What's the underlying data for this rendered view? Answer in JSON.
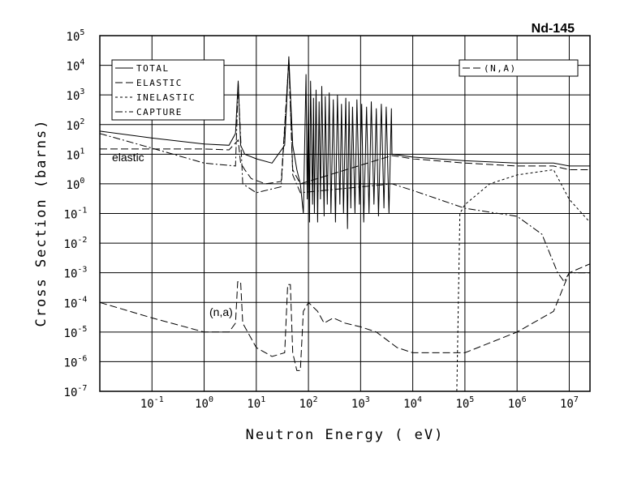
{
  "chart_data": {
    "type": "line",
    "title": "Nd-145",
    "xlabel": "Neutron Energy ( eV)",
    "ylabel": "Cross Section (barns)",
    "annotations": [
      "elastic",
      "(n,a)"
    ],
    "xscale": "log",
    "yscale": "log",
    "grid": true,
    "xlim": [
      0.01,
      25000000
    ],
    "ylim": [
      1e-07,
      100000
    ],
    "xticks": [
      {
        "value": 0.1,
        "label": "10",
        "sup": "-1"
      },
      {
        "value": 1,
        "label": "10",
        "sup": "0"
      },
      {
        "value": 10,
        "label": "10",
        "sup": "1"
      },
      {
        "value": 100,
        "label": "10",
        "sup": "2"
      },
      {
        "value": 1000,
        "label": "10",
        "sup": "3"
      },
      {
        "value": 10000,
        "label": "10",
        "sup": "4"
      },
      {
        "value": 100000,
        "label": "10",
        "sup": "5"
      },
      {
        "value": 1000000,
        "label": "10",
        "sup": "6"
      },
      {
        "value": 10000000,
        "label": "10",
        "sup": "7"
      }
    ],
    "yticks": [
      {
        "value": 1e-07,
        "label": "10",
        "sup": "-7"
      },
      {
        "value": 1e-06,
        "label": "10",
        "sup": "-6"
      },
      {
        "value": 1e-05,
        "label": "10",
        "sup": "-5"
      },
      {
        "value": 0.0001,
        "label": "10",
        "sup": "-4"
      },
      {
        "value": 0.001,
        "label": "10",
        "sup": "-3"
      },
      {
        "value": 0.01,
        "label": "10",
        "sup": "-2"
      },
      {
        "value": 0.1,
        "label": "10",
        "sup": "-1"
      },
      {
        "value": 1,
        "label": "10",
        "sup": "0"
      },
      {
        "value": 10,
        "label": "10",
        "sup": "1"
      },
      {
        "value": 100,
        "label": "10",
        "sup": "2"
      },
      {
        "value": 1000,
        "label": "10",
        "sup": "3"
      },
      {
        "value": 10000,
        "label": "10",
        "sup": "4"
      },
      {
        "value": 100000,
        "label": "10",
        "sup": "5"
      }
    ],
    "series": [
      {
        "name": "TOTAL",
        "color": "#000000",
        "dash": "solid",
        "legend": "upper left",
        "x": [
          0.01,
          0.1,
          1,
          3,
          4,
          4.5,
          5,
          6,
          10,
          20,
          35,
          42,
          50,
          60,
          70,
          80,
          90,
          95,
          100,
          105,
          110,
          120,
          125,
          130,
          140,
          150,
          160,
          170,
          180,
          200,
          210,
          230,
          250,
          270,
          300,
          330,
          360,
          400,
          430,
          470,
          520,
          560,
          600,
          650,
          700,
          780,
          850,
          950,
          1050,
          1150,
          1300,
          1450,
          1600,
          1800,
          2000,
          2200,
          2500,
          2800,
          3100,
          3500,
          3900,
          4000,
          10000,
          100000,
          1000000,
          5000000,
          10000000,
          25000000
        ],
        "values": [
          60,
          35,
          22,
          20,
          50,
          3000,
          20,
          10,
          7,
          5,
          20,
          20000,
          20,
          3,
          1,
          0.1,
          5000,
          0.3,
          1000,
          0.05,
          3000,
          0.2,
          800,
          0.1,
          1500,
          0.05,
          600,
          0.3,
          2000,
          0.08,
          900,
          0.2,
          1200,
          0.1,
          700,
          0.05,
          1000,
          0.2,
          500,
          0.1,
          800,
          0.03,
          600,
          0.15,
          400,
          0.1,
          700,
          0.2,
          500,
          0.05,
          400,
          0.1,
          600,
          0.2,
          350,
          0.08,
          500,
          0.15,
          400,
          0.1,
          350,
          10,
          8,
          6,
          5,
          5,
          4,
          4
        ]
      },
      {
        "name": "ELASTIC",
        "color": "#000000",
        "dash": "dashed",
        "legend": "upper left",
        "x": [
          0.01,
          1,
          3,
          4.5,
          5,
          6,
          8,
          15,
          30,
          42,
          50,
          70,
          4000,
          10000,
          100000,
          1000000,
          5000000,
          10000000,
          25000000
        ],
        "values": [
          15,
          15,
          14,
          30,
          5,
          3,
          1.5,
          1,
          1.2,
          15000,
          3,
          1,
          9,
          7,
          5,
          4,
          4,
          3,
          3
        ]
      },
      {
        "name": "INELASTIC",
        "color": "#000000",
        "dash": "dotted",
        "legend": "upper left",
        "x": [
          70000,
          80000,
          100000,
          300000,
          1000000,
          5000000,
          10000000,
          25000000
        ],
        "values": [
          1e-07,
          0.1,
          0.2,
          1,
          2,
          3,
          0.3,
          0.05
        ]
      },
      {
        "name": "CAPTURE",
        "color": "#000000",
        "dash": "dashdot",
        "legend": "upper left",
        "x": [
          0.01,
          0.1,
          1,
          4,
          4.5,
          5.5,
          10,
          30,
          42,
          50,
          70,
          4000,
          10000,
          100000,
          1000000,
          3000000,
          6000000,
          8000000,
          10000000,
          25000000
        ],
        "values": [
          50,
          16,
          5,
          4,
          2500,
          1,
          0.5,
          0.8,
          15000,
          2,
          0.5,
          1,
          0.6,
          0.15,
          0.08,
          0.02,
          0.001,
          0.0005,
          0.001,
          0.001
        ]
      },
      {
        "name": "(N,A)",
        "color": "#000000",
        "dash": "dashed",
        "legend": "upper right",
        "x": [
          0.01,
          0.1,
          1,
          3,
          4,
          4.4,
          5,
          5.5,
          10,
          20,
          35,
          40,
          45,
          50,
          60,
          70,
          80,
          100,
          150,
          200,
          300,
          500,
          1000,
          2000,
          5000,
          10000,
          100000,
          1000000,
          5000000,
          10000000,
          25000000
        ],
        "values": [
          0.0001,
          3e-05,
          1e-05,
          1e-05,
          2e-05,
          0.0005,
          0.0005,
          2e-05,
          3e-06,
          1.5e-06,
          2e-06,
          0.0004,
          0.0004,
          2e-06,
          5e-07,
          5e-07,
          5e-05,
          0.0001,
          5e-05,
          2e-05,
          3e-05,
          2e-05,
          1.5e-05,
          1e-05,
          3e-06,
          2e-06,
          2e-06,
          1e-05,
          5e-05,
          0.001,
          0.002
        ]
      }
    ]
  }
}
